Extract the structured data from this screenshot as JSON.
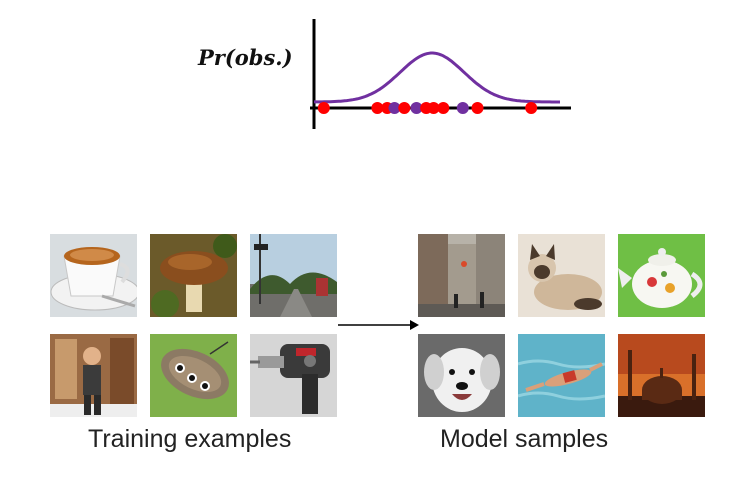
{
  "plot": {
    "y_label": "Pr(obs.)",
    "curve_color": "#7030a0",
    "axis_color": "#000000",
    "points": [
      {
        "x": 0.04,
        "color": "#ff0000"
      },
      {
        "x": 0.26,
        "color": "#ff0000"
      },
      {
        "x": 0.3,
        "color": "#ff0000"
      },
      {
        "x": 0.33,
        "color": "#7030a0"
      },
      {
        "x": 0.37,
        "color": "#ff0000"
      },
      {
        "x": 0.42,
        "color": "#7030a0"
      },
      {
        "x": 0.46,
        "color": "#ff0000"
      },
      {
        "x": 0.49,
        "color": "#ff0000"
      },
      {
        "x": 0.53,
        "color": "#ff0000"
      },
      {
        "x": 0.61,
        "color": "#7030a0"
      },
      {
        "x": 0.67,
        "color": "#ff0000"
      },
      {
        "x": 0.89,
        "color": "#ff0000"
      }
    ]
  },
  "training": {
    "caption": "Training examples",
    "images": [
      "coffee-cup",
      "mushroom",
      "street-road",
      "person-in-room",
      "butterfly",
      "power-drill"
    ]
  },
  "samples": {
    "caption": "Model samples",
    "images": [
      "city-street",
      "siamese-cat",
      "teapot",
      "dog",
      "swimmer",
      "mosque-sunset"
    ]
  }
}
